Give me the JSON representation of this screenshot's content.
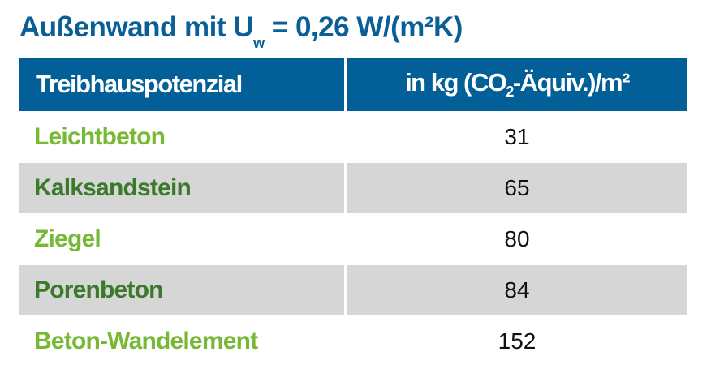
{
  "title": {
    "main": "Außenwand mit U",
    "sub": "w",
    "rest": " = 0,26 W/(m²K)"
  },
  "colors": {
    "header": "#035f98",
    "light_green": "#77b935",
    "dark_green": "#3a7a2a",
    "row_gray": "#d6d6d6"
  },
  "chart_data": {
    "type": "table",
    "columns": [
      "Treibhauspotenzial",
      "in kg (CO₂-Äquiv.)/m²"
    ],
    "header": {
      "col1": "Treibhauspotenzial",
      "col2_pre": "in kg (CO",
      "col2_sub": "2",
      "col2_post": "-Äquiv.)/m²"
    },
    "rows": [
      {
        "name": "Leichtbeton",
        "value": "31"
      },
      {
        "name": "Kalksandstein",
        "value": "65"
      },
      {
        "name": "Ziegel",
        "value": "80"
      },
      {
        "name": "Porenbeton",
        "value": "84"
      },
      {
        "name": "Beton-Wandelement",
        "value": "152"
      }
    ]
  }
}
